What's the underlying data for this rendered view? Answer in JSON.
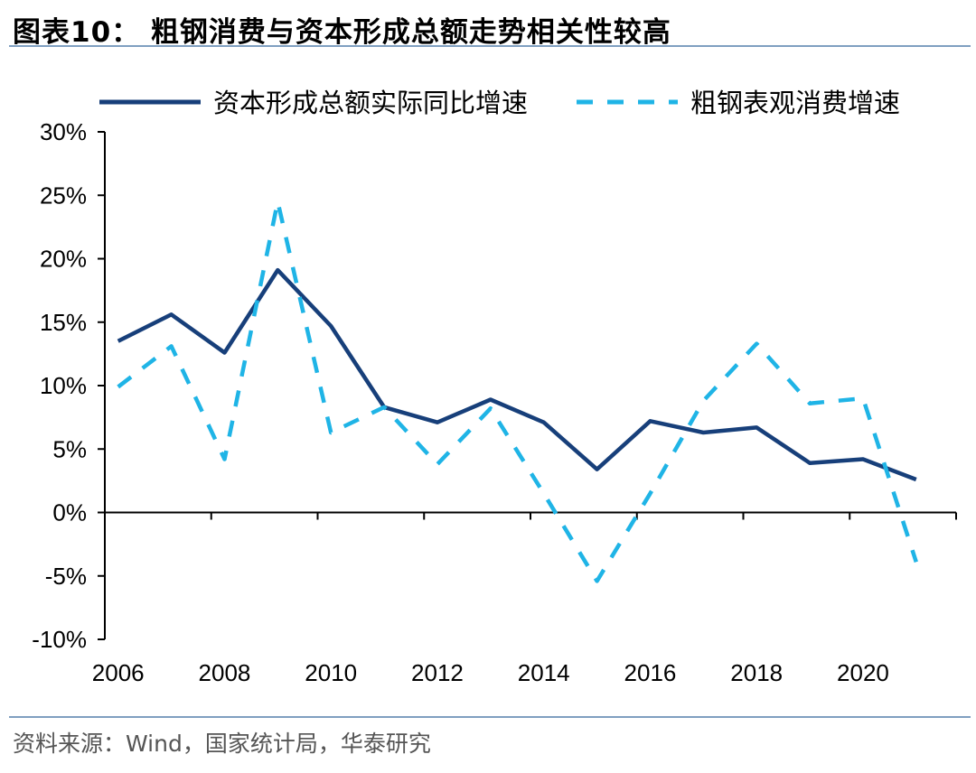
{
  "title": "图表10：  粗钢消费与资本形成总额走势相关性较高",
  "source": "资料来源：Wind，国家统计局，华泰研究",
  "chart_data": {
    "type": "line",
    "x": [
      2006,
      2007,
      2008,
      2009,
      2010,
      2011,
      2012,
      2013,
      2014,
      2015,
      2016,
      2017,
      2018,
      2019,
      2020,
      2021
    ],
    "xticks": [
      2006,
      2008,
      2010,
      2012,
      2014,
      2016,
      2018,
      2020
    ],
    "xtick_labels": [
      "2006",
      "2008",
      "2010",
      "2012",
      "2014",
      "2016",
      "2018",
      "2020"
    ],
    "xlim": [
      2005.75,
      2021.75
    ],
    "ylim": [
      -10,
      30
    ],
    "yticks": [
      -10,
      -5,
      0,
      5,
      10,
      15,
      20,
      25,
      30
    ],
    "ytick_labels": [
      "-10%",
      "-5%",
      "0%",
      "5%",
      "10%",
      "15%",
      "20%",
      "25%",
      "30%"
    ],
    "grid": false,
    "legend_position": "top",
    "series": [
      {
        "name": "资本形成总额实际同比增速",
        "style": "solid",
        "color": "#173f7a",
        "values": [
          13.5,
          15.6,
          12.6,
          19.1,
          14.7,
          8.3,
          7.1,
          8.9,
          7.1,
          3.4,
          7.2,
          6.3,
          6.7,
          3.9,
          4.2,
          2.6
        ]
      },
      {
        "name": "粗钢表观消费增速",
        "style": "dashed",
        "color": "#1fb4e6",
        "values": [
          9.9,
          13.1,
          4.2,
          24.5,
          6.3,
          8.3,
          3.8,
          8.2,
          1.5,
          -5.4,
          1.5,
          8.8,
          13.3,
          8.6,
          9.0,
          -3.9
        ]
      }
    ]
  }
}
